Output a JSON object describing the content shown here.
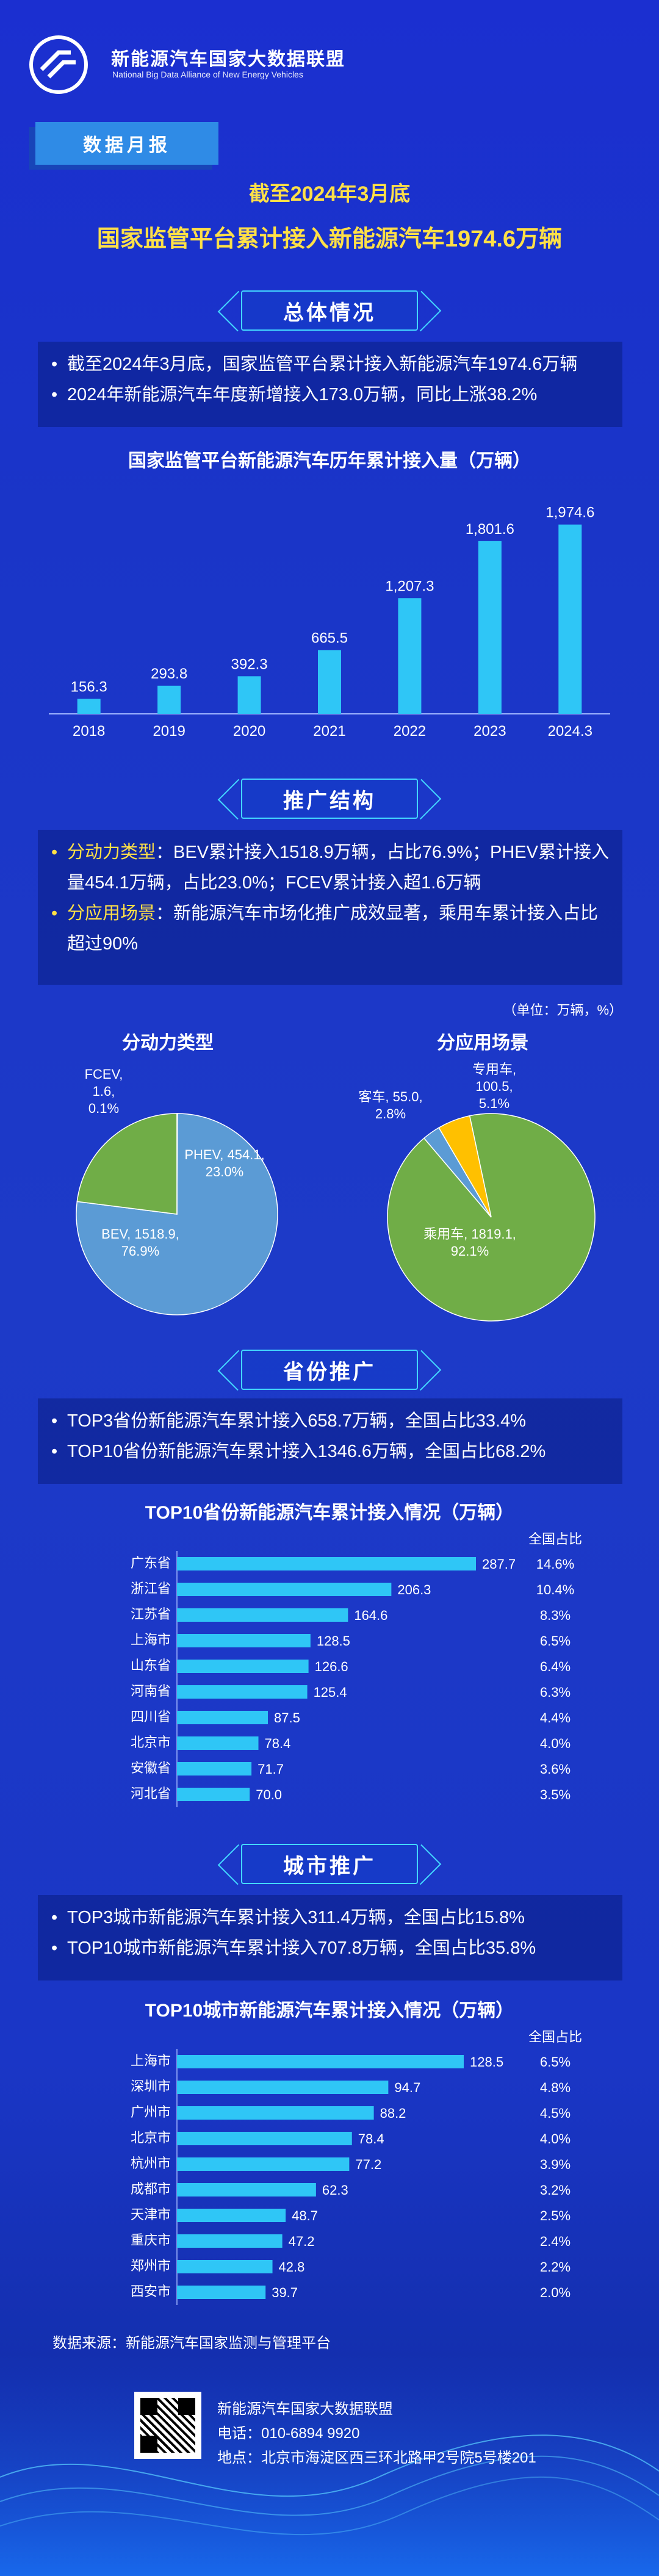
{
  "brand": {
    "name_cn": "新能源汽车国家大数据联盟",
    "name_en": "National Big Data Alliance of New Energy Vehicles"
  },
  "tag": "数据月报",
  "headline": {
    "line1": "截至2024年3月底",
    "line2": "国家监管平台累计接入新能源汽车1974.6万辆"
  },
  "section_overview": {
    "title": "总体情况",
    "bullets": [
      "截至2024年3月底，国家监管平台累计接入新能源汽车1974.6万辆",
      "2024年新能源汽车年度新增接入173.0万辆，同比上涨38.2%"
    ]
  },
  "section_structure": {
    "title": "推广结构",
    "b1_label": "分动力类型",
    "b1_text": "：BEV累计接入1518.9万辆，占比76.9%；PHEV累计接入量454.1万辆，占比23.0%；FCEV累计接入超1.6万辆",
    "b2_label": "分应用场景",
    "b2_text": "：新能源汽车市场化推广成效显著，乘用车累计接入占比超过90%",
    "unit": "（单位：万辆，%）",
    "pie1_title": "分动力类型",
    "pie2_title": "分应用场景"
  },
  "section_province": {
    "title": "省份推广",
    "bullets": [
      "TOP3省份新能源汽车累计接入658.7万辆，全国占比33.4%",
      "TOP10省份新能源汽车累计接入1346.6万辆，全国占比68.2%"
    ]
  },
  "section_city": {
    "title": "城市推广",
    "bullets": [
      "TOP3城市新能源汽车累计接入311.4万辆，全国占比15.8%",
      "TOP10城市新能源汽车累计接入707.8万辆，全国占比35.8%"
    ]
  },
  "colors": {
    "bar": "#2fc6f6",
    "bev": "#5b9bd5",
    "phev": "#70ad47",
    "fcev": "#ffc000",
    "accent": "#ffe047"
  },
  "chart_data": [
    {
      "type": "bar",
      "title": "国家监管平台新能源汽车历年累计接入量（万辆）",
      "categories": [
        "2018",
        "2019",
        "2020",
        "2021",
        "2022",
        "2023",
        "2024.3"
      ],
      "values": [
        156.3,
        293.8,
        392.3,
        665.5,
        1207.3,
        1801.6,
        1974.6
      ],
      "value_labels": [
        "156.3",
        "293.8",
        "392.3",
        "665.5",
        "1,207.3",
        "1,801.6",
        "1,974.6"
      ],
      "xlabel": "",
      "ylabel": "",
      "ylim": [
        0,
        2100
      ]
    },
    {
      "type": "pie",
      "title": "分动力类型",
      "slices": [
        {
          "name": "BEV",
          "value": 1518.9,
          "pct": "76.9%",
          "label": "BEV, 1518.9,",
          "pct_label": "76.9%",
          "color": "#5b9bd5"
        },
        {
          "name": "PHEV",
          "value": 454.1,
          "pct": "23.0%",
          "label": "PHEV, 454.1,",
          "pct_label": "23.0%",
          "color": "#70ad47"
        },
        {
          "name": "FCEV",
          "value": 1.6,
          "pct": "0.1%",
          "label": "FCEV,",
          "label2": "1.6,",
          "pct_label": "0.1%",
          "color": "#ffc000"
        }
      ]
    },
    {
      "type": "pie",
      "title": "分应用场景",
      "slices": [
        {
          "name": "乘用车",
          "value": 1819.1,
          "pct": "92.1%",
          "label": "乘用车, 1819.1,",
          "pct_label": "92.1%",
          "color": "#70ad47"
        },
        {
          "name": "客车",
          "value": 55.0,
          "pct": "2.8%",
          "label": "客车, 55.0,",
          "pct_label": "2.8%",
          "color": "#5b9bd5"
        },
        {
          "name": "专用车",
          "value": 100.5,
          "pct": "5.1%",
          "label": "专用车,",
          "label2": "100.5,",
          "pct_label": "5.1%",
          "color": "#ffc000"
        }
      ]
    },
    {
      "type": "bar",
      "orientation": "horizontal",
      "title": "TOP10省份新能源汽车累计接入情况（万辆）",
      "share_header": "全国占比",
      "categories": [
        "广东省",
        "浙江省",
        "江苏省",
        "上海市",
        "山东省",
        "河南省",
        "四川省",
        "北京市",
        "安徽省",
        "河北省"
      ],
      "values": [
        287.7,
        206.3,
        164.6,
        128.5,
        126.6,
        125.4,
        87.5,
        78.4,
        71.7,
        70.0
      ],
      "value_labels": [
        "287.7",
        "206.3",
        "164.6",
        "128.5",
        "126.6",
        "125.4",
        "87.5",
        "78.4",
        "71.7",
        "70.0"
      ],
      "shares": [
        "14.6%",
        "10.4%",
        "8.3%",
        "6.5%",
        "6.4%",
        "6.3%",
        "4.4%",
        "4.0%",
        "3.6%",
        "3.5%"
      ]
    },
    {
      "type": "bar",
      "orientation": "horizontal",
      "title": "TOP10城市新能源汽车累计接入情况（万辆）",
      "share_header": "全国占比",
      "categories": [
        "上海市",
        "深圳市",
        "广州市",
        "北京市",
        "杭州市",
        "成都市",
        "天津市",
        "重庆市",
        "郑州市",
        "西安市"
      ],
      "values": [
        128.5,
        94.7,
        88.2,
        78.4,
        77.2,
        62.3,
        48.7,
        47.2,
        42.8,
        39.7
      ],
      "value_labels": [
        "128.5",
        "94.7",
        "88.2",
        "78.4",
        "77.2",
        "62.3",
        "48.7",
        "47.2",
        "42.8",
        "39.7"
      ],
      "shares": [
        "6.5%",
        "4.8%",
        "4.5%",
        "4.0%",
        "3.9%",
        "3.2%",
        "2.5%",
        "2.4%",
        "2.2%",
        "2.0%"
      ]
    }
  ],
  "footer": {
    "source": "数据来源：新能源汽车国家监测与管理平台",
    "org": "新能源汽车国家大数据联盟",
    "phone": "电话：010-6894 9920",
    "address": "地点：北京市海淀区西三环北路甲2号院5号楼201"
  }
}
